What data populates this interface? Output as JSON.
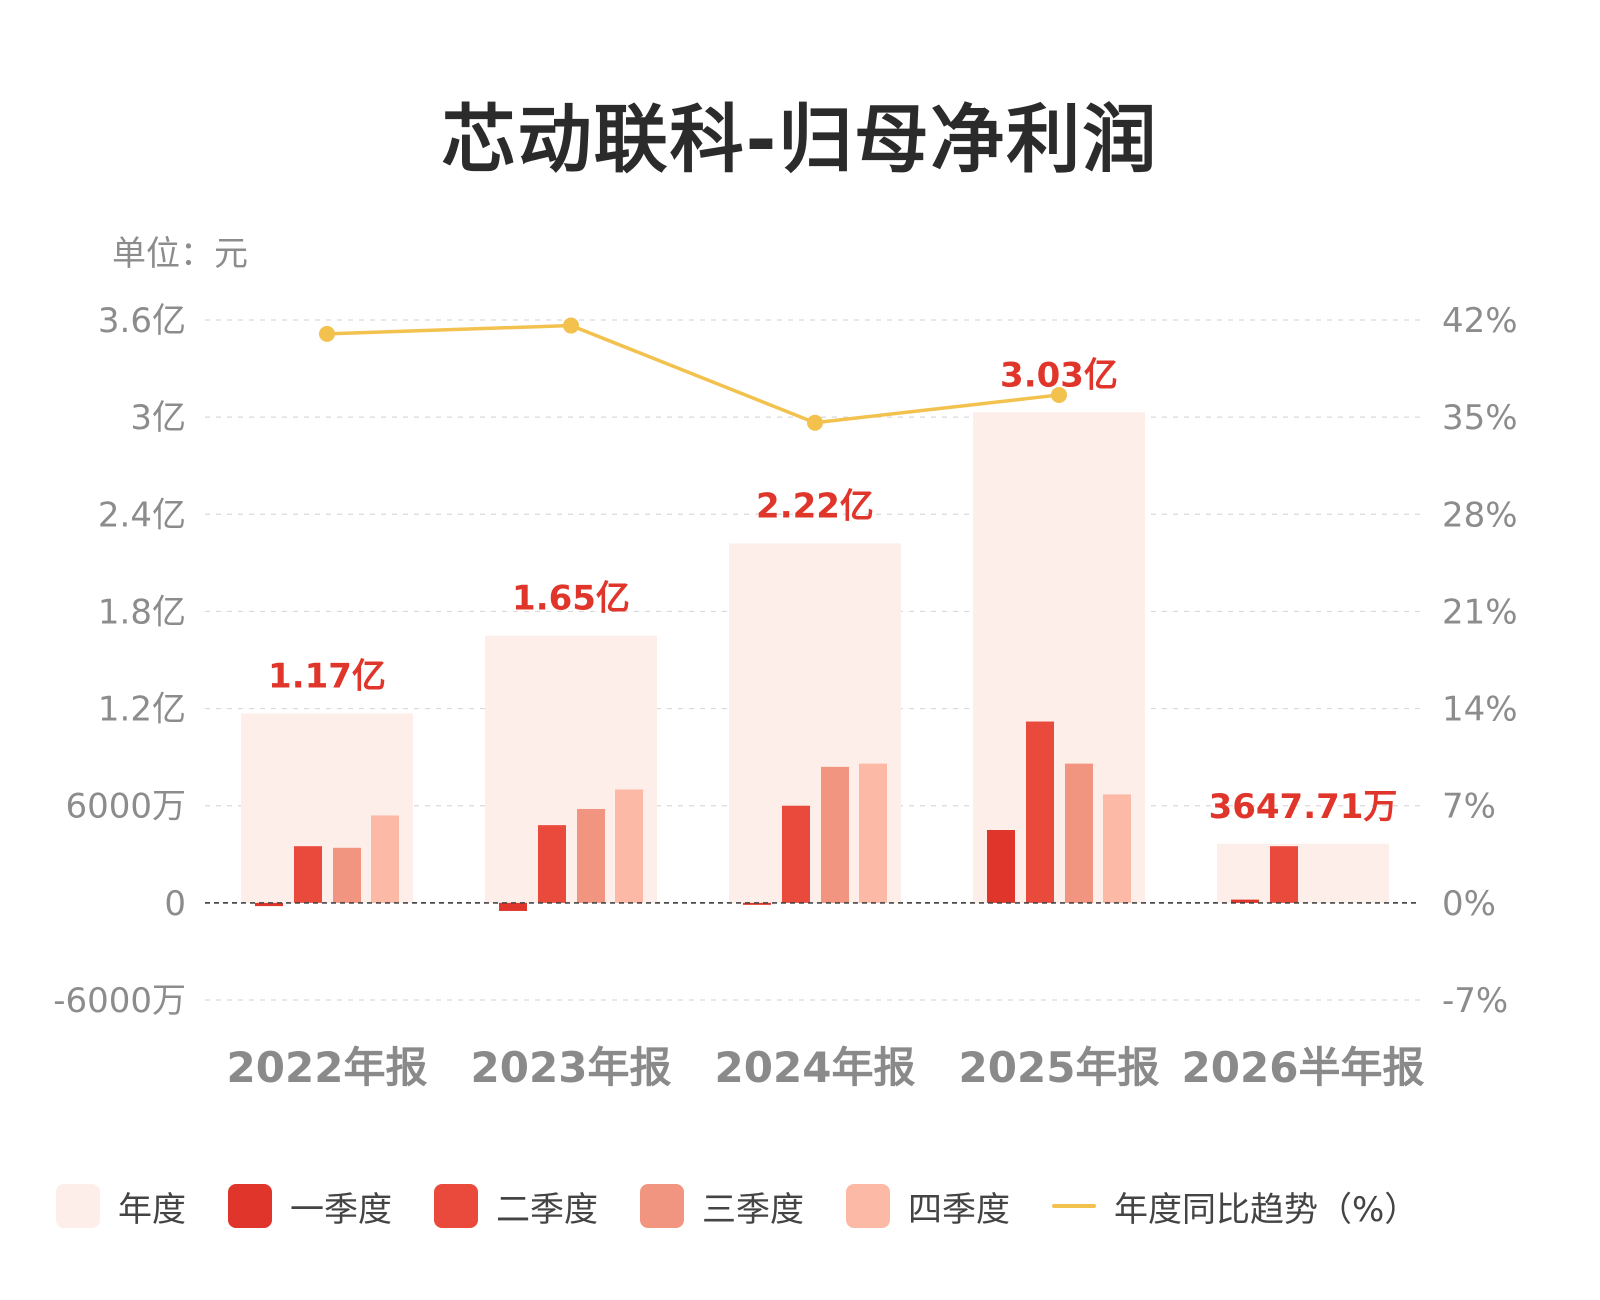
{
  "title": "芯动联科-归母净利润",
  "unit_label": "单位：元",
  "colors": {
    "annual": "#fdeee9",
    "q1": "#e0352b",
    "q2": "#ea4a3c",
    "q3": "#f29580",
    "q4": "#fbb9a6",
    "trend": "#f2c14e",
    "value_label": "#e0352b"
  },
  "legend": [
    {
      "key": "annual",
      "label": "年度"
    },
    {
      "key": "q1",
      "label": "一季度"
    },
    {
      "key": "q2",
      "label": "二季度"
    },
    {
      "key": "q3",
      "label": "三季度"
    },
    {
      "key": "q4",
      "label": "四季度"
    },
    {
      "key": "trend",
      "label": "年度同比趋势（%）"
    }
  ],
  "chart_data": {
    "type": "bar",
    "title": "芯动联科-归母净利润",
    "unit": "元",
    "categories": [
      "2022年报",
      "2023年报",
      "2024年报",
      "2025年报",
      "2026半年报"
    ],
    "annual": {
      "values": [
        117000000,
        165000000,
        222000000,
        303000000,
        36477100
      ],
      "labels": [
        "1.17亿",
        "1.65亿",
        "2.22亿",
        "3.03亿",
        "3647.71万"
      ]
    },
    "series": [
      {
        "name": "一季度",
        "values": [
          -2000000,
          -5000000,
          -1000000,
          45000000,
          2000000
        ]
      },
      {
        "name": "二季度",
        "values": [
          35000000,
          48000000,
          60000000,
          112000000,
          35000000
        ]
      },
      {
        "name": "三季度",
        "values": [
          34000000,
          58000000,
          84000000,
          86000000,
          null
        ]
      },
      {
        "name": "四季度",
        "values": [
          54000000,
          70000000,
          86000000,
          67000000,
          null
        ]
      }
    ],
    "trend": {
      "name": "年度同比趋势（%）",
      "values": [
        41,
        41.6,
        34.6,
        36.6
      ]
    },
    "y_left": {
      "ylim": [
        -60000000,
        360000000
      ],
      "ticks": [
        -60000000,
        0,
        60000000,
        120000000,
        180000000,
        240000000,
        300000000,
        360000000
      ],
      "tick_labels": [
        "-6000万",
        "0",
        "6000万",
        "1.2亿",
        "1.8亿",
        "2.4亿",
        "3亿",
        "3.6亿"
      ]
    },
    "y_right": {
      "ylim": [
        -7,
        42
      ],
      "ticks": [
        -7,
        0,
        7,
        14,
        21,
        28,
        35,
        42
      ],
      "tick_labels": [
        "-7%",
        "0%",
        "7%",
        "14%",
        "21%",
        "28%",
        "35%",
        "42%"
      ]
    },
    "grid": true,
    "legend_position": "bottom"
  }
}
